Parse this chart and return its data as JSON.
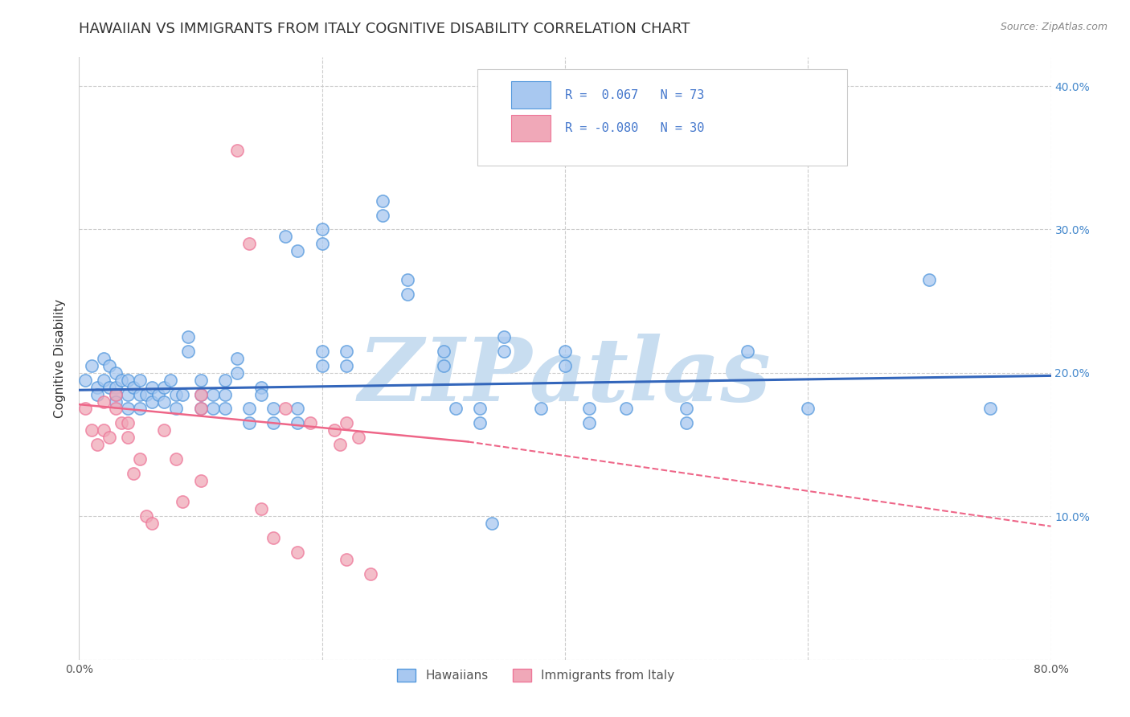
{
  "title": "HAWAIIAN VS IMMIGRANTS FROM ITALY COGNITIVE DISABILITY CORRELATION CHART",
  "source": "Source: ZipAtlas.com",
  "ylabel": "Cognitive Disability",
  "xlim": [
    0.0,
    0.8
  ],
  "ylim": [
    0.0,
    0.42
  ],
  "xticks": [
    0.0,
    0.1,
    0.2,
    0.3,
    0.4,
    0.5,
    0.6,
    0.7,
    0.8
  ],
  "yticks": [
    0.0,
    0.1,
    0.2,
    0.3,
    0.4
  ],
  "xtick_labels": [
    "0.0%",
    "",
    "",
    "",
    "",
    "",
    "",
    "",
    "80.0%"
  ],
  "ytick_labels_right": [
    "",
    "10.0%",
    "20.0%",
    "30.0%",
    "40.0%"
  ],
  "background_color": "#ffffff",
  "grid_color": "#cccccc",
  "watermark_text": "ZIPatlas",
  "watermark_color": "#c8ddf0",
  "hawaii_color": "#a8c8f0",
  "italy_color": "#f0a8b8",
  "hawaii_edge_color": "#5599dd",
  "italy_edge_color": "#ee7799",
  "hawaii_line_color": "#3366bb",
  "italy_line_color": "#ee6688",
  "hawaii_scatter": [
    [
      0.005,
      0.195
    ],
    [
      0.01,
      0.205
    ],
    [
      0.015,
      0.19
    ],
    [
      0.015,
      0.185
    ],
    [
      0.02,
      0.21
    ],
    [
      0.02,
      0.195
    ],
    [
      0.025,
      0.205
    ],
    [
      0.025,
      0.19
    ],
    [
      0.03,
      0.2
    ],
    [
      0.03,
      0.19
    ],
    [
      0.03,
      0.185
    ],
    [
      0.03,
      0.18
    ],
    [
      0.035,
      0.195
    ],
    [
      0.04,
      0.195
    ],
    [
      0.04,
      0.185
    ],
    [
      0.04,
      0.175
    ],
    [
      0.045,
      0.19
    ],
    [
      0.05,
      0.195
    ],
    [
      0.05,
      0.185
    ],
    [
      0.05,
      0.175
    ],
    [
      0.055,
      0.185
    ],
    [
      0.06,
      0.19
    ],
    [
      0.06,
      0.18
    ],
    [
      0.065,
      0.185
    ],
    [
      0.07,
      0.19
    ],
    [
      0.07,
      0.18
    ],
    [
      0.075,
      0.195
    ],
    [
      0.08,
      0.185
    ],
    [
      0.08,
      0.175
    ],
    [
      0.085,
      0.185
    ],
    [
      0.09,
      0.225
    ],
    [
      0.09,
      0.215
    ],
    [
      0.1,
      0.195
    ],
    [
      0.1,
      0.185
    ],
    [
      0.1,
      0.175
    ],
    [
      0.11,
      0.185
    ],
    [
      0.11,
      0.175
    ],
    [
      0.12,
      0.195
    ],
    [
      0.12,
      0.185
    ],
    [
      0.12,
      0.175
    ],
    [
      0.13,
      0.21
    ],
    [
      0.13,
      0.2
    ],
    [
      0.14,
      0.175
    ],
    [
      0.14,
      0.165
    ],
    [
      0.15,
      0.19
    ],
    [
      0.15,
      0.185
    ],
    [
      0.16,
      0.175
    ],
    [
      0.16,
      0.165
    ],
    [
      0.17,
      0.295
    ],
    [
      0.18,
      0.285
    ],
    [
      0.18,
      0.175
    ],
    [
      0.18,
      0.165
    ],
    [
      0.2,
      0.3
    ],
    [
      0.2,
      0.29
    ],
    [
      0.2,
      0.215
    ],
    [
      0.2,
      0.205
    ],
    [
      0.22,
      0.215
    ],
    [
      0.22,
      0.205
    ],
    [
      0.25,
      0.32
    ],
    [
      0.25,
      0.31
    ],
    [
      0.27,
      0.265
    ],
    [
      0.27,
      0.255
    ],
    [
      0.3,
      0.215
    ],
    [
      0.3,
      0.205
    ],
    [
      0.31,
      0.175
    ],
    [
      0.33,
      0.175
    ],
    [
      0.33,
      0.165
    ],
    [
      0.35,
      0.225
    ],
    [
      0.35,
      0.215
    ],
    [
      0.38,
      0.175
    ],
    [
      0.4,
      0.215
    ],
    [
      0.4,
      0.205
    ],
    [
      0.42,
      0.175
    ],
    [
      0.42,
      0.165
    ],
    [
      0.45,
      0.175
    ],
    [
      0.5,
      0.175
    ],
    [
      0.5,
      0.165
    ],
    [
      0.55,
      0.215
    ],
    [
      0.6,
      0.175
    ],
    [
      0.7,
      0.265
    ],
    [
      0.75,
      0.175
    ],
    [
      0.34,
      0.095
    ]
  ],
  "italy_scatter": [
    [
      0.005,
      0.175
    ],
    [
      0.01,
      0.16
    ],
    [
      0.015,
      0.15
    ],
    [
      0.02,
      0.18
    ],
    [
      0.02,
      0.16
    ],
    [
      0.025,
      0.155
    ],
    [
      0.03,
      0.185
    ],
    [
      0.03,
      0.175
    ],
    [
      0.035,
      0.165
    ],
    [
      0.04,
      0.165
    ],
    [
      0.04,
      0.155
    ],
    [
      0.045,
      0.13
    ],
    [
      0.05,
      0.14
    ],
    [
      0.055,
      0.1
    ],
    [
      0.06,
      0.095
    ],
    [
      0.07,
      0.16
    ],
    [
      0.08,
      0.14
    ],
    [
      0.085,
      0.11
    ],
    [
      0.1,
      0.185
    ],
    [
      0.1,
      0.175
    ],
    [
      0.13,
      0.355
    ],
    [
      0.14,
      0.29
    ],
    [
      0.17,
      0.175
    ],
    [
      0.19,
      0.165
    ],
    [
      0.21,
      0.16
    ],
    [
      0.215,
      0.15
    ],
    [
      0.22,
      0.165
    ],
    [
      0.23,
      0.155
    ],
    [
      0.1,
      0.125
    ],
    [
      0.15,
      0.105
    ],
    [
      0.16,
      0.085
    ],
    [
      0.18,
      0.075
    ],
    [
      0.22,
      0.07
    ],
    [
      0.24,
      0.06
    ]
  ],
  "hawaii_trendline": [
    0.0,
    0.8,
    0.188,
    0.198
  ],
  "italy_trendline_solid": [
    0.0,
    0.32,
    0.178,
    0.152
  ],
  "italy_trendline_dashed": [
    0.32,
    0.8,
    0.152,
    0.093
  ]
}
